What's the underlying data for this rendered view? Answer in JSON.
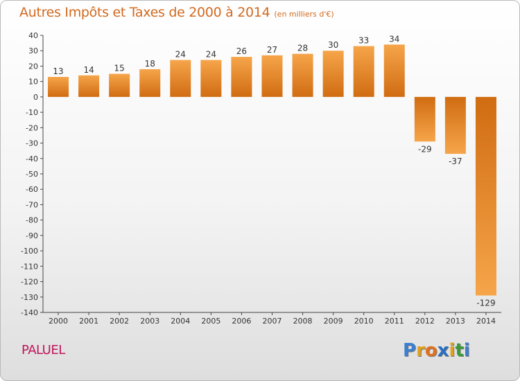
{
  "title": "Autres Impôts et Taxes de 2000 à 2014",
  "unit": "(en milliers d'€)",
  "commune": "PALUEL",
  "logo": {
    "text": "Proxiti",
    "letters": [
      "P",
      "r",
      "o",
      "x",
      "i",
      "t",
      "i"
    ],
    "colors": [
      "#3a7fd0",
      "#e0a020",
      "#e07020",
      "#2a6fc0",
      "#e0a020",
      "#3a9a3a",
      "#3a7fd0"
    ]
  },
  "chart_data": {
    "type": "bar",
    "title": "Autres Impôts et Taxes de 2000 à 2014",
    "subtitle": "(en milliers d'€)",
    "categories": [
      "2000",
      "2001",
      "2002",
      "2003",
      "2004",
      "2005",
      "2006",
      "2007",
      "2008",
      "2009",
      "2010",
      "2011",
      "2012",
      "2013",
      "2014"
    ],
    "values": [
      13,
      14,
      15,
      18,
      24,
      24,
      26,
      27,
      28,
      30,
      33,
      34,
      -29,
      -37,
      -129
    ],
    "data_labels": [
      "13",
      "14",
      "15",
      "18",
      "24",
      "24",
      "26",
      "27",
      "28",
      "30",
      "33",
      "34",
      "-29",
      "-37",
      "-129"
    ],
    "ylim": [
      -140,
      40
    ],
    "yticks": [
      40,
      30,
      20,
      10,
      0,
      -10,
      -20,
      -30,
      -40,
      -50,
      -60,
      -70,
      -80,
      -90,
      -100,
      -110,
      -120,
      -130,
      -140
    ],
    "grid": false,
    "colors": {
      "bar_light": "#f6a54a",
      "bar_dark": "#d06c12",
      "axis": "#444444",
      "text": "#333333"
    }
  }
}
